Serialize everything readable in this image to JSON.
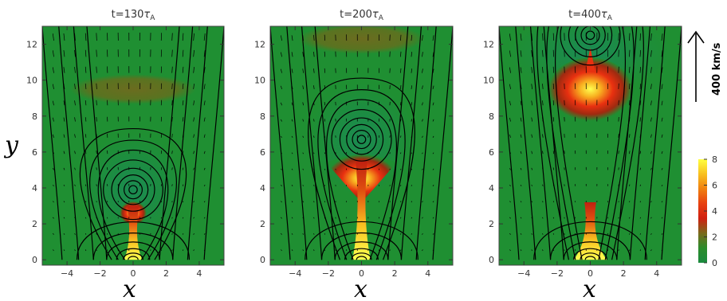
{
  "panel_titles": [
    {
      "prefix": "t=130",
      "tau": "τ",
      "sub": "A"
    },
    {
      "prefix": "t=200",
      "tau": "τ",
      "sub": "A"
    },
    {
      "prefix": "t=400",
      "tau": "τ",
      "sub": "A"
    }
  ],
  "x_axis_label": "x",
  "y_axis_label": "y",
  "velocity_scale_label": "400 km/s",
  "colors": {
    "background_green": "#1f8f32",
    "field_line": "#000000",
    "colorbar": [
      "#1a8a3e",
      "#2c8c2c",
      "#7a6a1c",
      "#d02010",
      "#e84010",
      "#f08010",
      "#f8c020",
      "#ffff40"
    ]
  },
  "chart_data": {
    "type": "heatmap",
    "panels": [
      {
        "title": "t=130τA",
        "xlim": [
          -5.5,
          5.5
        ],
        "ylim": [
          -0.3,
          13
        ],
        "flux_rope_center": [
          0,
          3.9
        ],
        "current_sheet": {
          "y_min": 0,
          "y_max": 3.0
        },
        "hot_blob": {
          "center": [
            0,
            2.6
          ],
          "intensity": 3
        },
        "outflow_arc": {
          "center_y": 9.5,
          "intensity": 1
        }
      },
      {
        "title": "t=200τA",
        "xlim": [
          -5.5,
          5.5
        ],
        "ylim": [
          -0.3,
          13
        ],
        "flux_rope_center": [
          0,
          6.7
        ],
        "current_sheet": {
          "y_min": 0,
          "y_max": 5.5
        },
        "hot_blob": {
          "center": [
            0,
            4.9
          ],
          "intensity": 4
        },
        "outflow_arc": {
          "center_y": 12.3,
          "intensity": 1
        }
      },
      {
        "title": "t=400τA",
        "xlim": [
          -5.5,
          5.5
        ],
        "ylim": [
          -0.3,
          13
        ],
        "flux_rope_center": [
          0,
          12.5
        ],
        "current_sheet": {
          "y_min": 0,
          "y_max": 3.2
        },
        "hot_blob": {
          "center": [
            0,
            9.5
          ],
          "intensity": 5
        },
        "outflow_arc": null
      }
    ],
    "x_ticks": [
      -4,
      -2,
      0,
      2,
      4
    ],
    "y_ticks": [
      0,
      2,
      4,
      6,
      8,
      10,
      12
    ],
    "colorbar": {
      "min": 0,
      "max": 8,
      "ticks": [
        0,
        2,
        4,
        6,
        8
      ]
    },
    "velocity_scale_kms": 400
  }
}
